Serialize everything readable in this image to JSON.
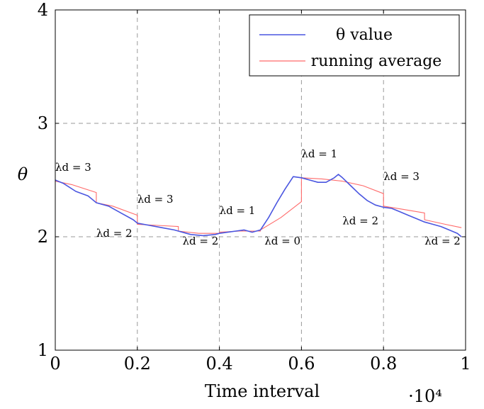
{
  "chart_data": {
    "type": "line",
    "title": "",
    "xlabel": "Time interval",
    "ylabel": "θ",
    "x_multiplier_label": "·10⁴",
    "xlim": [
      0,
      1
    ],
    "ylim": [
      1,
      4
    ],
    "x_ticks": [
      0,
      0.2,
      0.4,
      0.6,
      0.8,
      1
    ],
    "x_tick_labels": [
      "0",
      "0.2",
      "0.4",
      "0.6",
      "0.8",
      "1"
    ],
    "y_ticks": [
      1,
      2,
      3,
      4
    ],
    "y_tick_labels": [
      "1",
      "2",
      "3",
      "4"
    ],
    "grid": true,
    "legend_position": "top-right",
    "colors": {
      "theta": "#4a56e0",
      "avg": "#ff6b6b",
      "grid": "#9a9a9a"
    },
    "series": [
      {
        "name": "θ value",
        "color": "#4a56e0",
        "x": [
          0,
          0.02,
          0.05,
          0.08,
          0.1,
          0.13,
          0.16,
          0.19,
          0.2,
          0.23,
          0.26,
          0.29,
          0.3,
          0.33,
          0.36,
          0.39,
          0.4,
          0.42,
          0.44,
          0.46,
          0.48,
          0.5,
          0.52,
          0.54,
          0.56,
          0.58,
          0.6,
          0.62,
          0.64,
          0.66,
          0.68,
          0.69,
          0.7,
          0.72,
          0.74,
          0.76,
          0.78,
          0.8,
          0.82,
          0.84,
          0.86,
          0.88,
          0.9,
          0.92,
          0.94,
          0.96,
          0.98,
          0.99
        ],
        "y": [
          2.5,
          2.47,
          2.4,
          2.36,
          2.3,
          2.27,
          2.21,
          2.15,
          2.12,
          2.1,
          2.08,
          2.06,
          2.05,
          2.02,
          2.01,
          2.02,
          2.03,
          2.04,
          2.05,
          2.06,
          2.04,
          2.06,
          2.17,
          2.3,
          2.42,
          2.53,
          2.52,
          2.5,
          2.48,
          2.48,
          2.52,
          2.55,
          2.52,
          2.45,
          2.38,
          2.32,
          2.28,
          2.26,
          2.25,
          2.22,
          2.19,
          2.16,
          2.13,
          2.11,
          2.09,
          2.06,
          2.03,
          2.0
        ]
      },
      {
        "name": "running average",
        "color": "#ff6b6b",
        "x": [
          0,
          0.04,
          0.1,
          0.1,
          0.14,
          0.2,
          0.2,
          0.25,
          0.3,
          0.3,
          0.35,
          0.4,
          0.4,
          0.45,
          0.5,
          0.5,
          0.55,
          0.6,
          0.6,
          0.65,
          0.7,
          0.75,
          0.8,
          0.8,
          0.85,
          0.9,
          0.9,
          0.95,
          0.99
        ],
        "y": [
          2.49,
          2.46,
          2.39,
          2.3,
          2.27,
          2.19,
          2.11,
          2.1,
          2.09,
          2.05,
          2.03,
          2.03,
          2.04,
          2.05,
          2.05,
          2.06,
          2.17,
          2.31,
          2.52,
          2.51,
          2.49,
          2.45,
          2.38,
          2.27,
          2.24,
          2.21,
          2.15,
          2.11,
          2.08
        ]
      }
    ],
    "annotations": [
      {
        "text": "λd = 3",
        "x": 0.0,
        "y": 2.58
      },
      {
        "text": "λd = 2",
        "x": 0.1,
        "y": 2.0
      },
      {
        "text": "λd = 3",
        "x": 0.2,
        "y": 2.3
      },
      {
        "text": "λd = 2",
        "x": 0.31,
        "y": 1.93
      },
      {
        "text": "λd = 1",
        "x": 0.4,
        "y": 2.2
      },
      {
        "text": "λd = 0",
        "x": 0.51,
        "y": 1.93
      },
      {
        "text": "λd = 1",
        "x": 0.6,
        "y": 2.7
      },
      {
        "text": "λd = 2",
        "x": 0.7,
        "y": 2.11
      },
      {
        "text": "λd = 3",
        "x": 0.8,
        "y": 2.5
      },
      {
        "text": "λd = 2",
        "x": 0.9,
        "y": 1.93
      }
    ]
  }
}
